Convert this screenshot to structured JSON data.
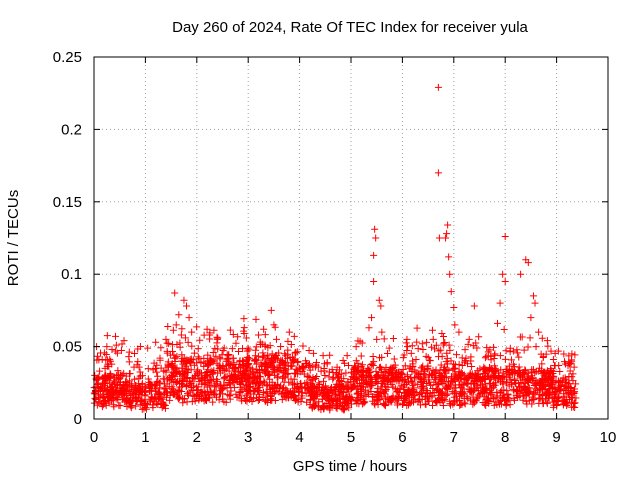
{
  "chart_data": {
    "type": "scatter",
    "title": "Day 260 of 2024, Rate Of TEC Index for receiver yula",
    "xlabel": "GPS time / hours",
    "ylabel": "ROTI / TECUs",
    "xlim": [
      0,
      10
    ],
    "ylim": [
      0,
      0.25
    ],
    "x_ticks": [
      0,
      1,
      2,
      3,
      4,
      5,
      6,
      7,
      8,
      9,
      10
    ],
    "x_tick_labels": [
      "0",
      "1",
      "2",
      "3",
      "4",
      "5",
      "6",
      "7",
      "8",
      "9",
      "10"
    ],
    "y_ticks": [
      0,
      0.05,
      0.1,
      0.15,
      0.2,
      0.25
    ],
    "y_tick_labels": [
      "0",
      "0.05",
      "0.1",
      "0.15",
      "0.2",
      "0.25"
    ],
    "grid": true,
    "marker": "+",
    "series": [
      {
        "name": "ROTI",
        "color": "#ff0000",
        "peaks": [
          {
            "x": 6.7,
            "y": 0.229
          },
          {
            "x": 6.7,
            "y": 0.17
          },
          {
            "x": 6.88,
            "y": 0.134
          },
          {
            "x": 6.86,
            "y": 0.128
          },
          {
            "x": 6.84,
            "y": 0.125
          },
          {
            "x": 6.72,
            "y": 0.125
          },
          {
            "x": 6.9,
            "y": 0.112
          },
          {
            "x": 6.92,
            "y": 0.1
          },
          {
            "x": 6.95,
            "y": 0.088
          },
          {
            "x": 7.0,
            "y": 0.077
          },
          {
            "x": 7.4,
            "y": 0.078
          },
          {
            "x": 7.02,
            "y": 0.065
          },
          {
            "x": 7.1,
            "y": 0.06
          },
          {
            "x": 7.3,
            "y": 0.055
          },
          {
            "x": 5.46,
            "y": 0.131
          },
          {
            "x": 5.48,
            "y": 0.125
          },
          {
            "x": 5.44,
            "y": 0.113
          },
          {
            "x": 5.44,
            "y": 0.095
          },
          {
            "x": 5.55,
            "y": 0.082
          },
          {
            "x": 5.58,
            "y": 0.078
          },
          {
            "x": 5.4,
            "y": 0.07
          },
          {
            "x": 5.35,
            "y": 0.063
          },
          {
            "x": 5.5,
            "y": 0.055
          },
          {
            "x": 5.6,
            "y": 0.06
          },
          {
            "x": 8.0,
            "y": 0.126
          },
          {
            "x": 8.4,
            "y": 0.11
          },
          {
            "x": 8.45,
            "y": 0.108
          },
          {
            "x": 8.3,
            "y": 0.1
          },
          {
            "x": 7.95,
            "y": 0.1
          },
          {
            "x": 8.0,
            "y": 0.095
          },
          {
            "x": 8.55,
            "y": 0.085
          },
          {
            "x": 8.58,
            "y": 0.08
          },
          {
            "x": 7.9,
            "y": 0.08
          },
          {
            "x": 8.5,
            "y": 0.07
          },
          {
            "x": 7.85,
            "y": 0.066
          },
          {
            "x": 8.65,
            "y": 0.06
          },
          {
            "x": 8.6,
            "y": 0.05
          },
          {
            "x": 7.8,
            "y": 0.045
          },
          {
            "x": 1.57,
            "y": 0.087
          },
          {
            "x": 1.75,
            "y": 0.082
          },
          {
            "x": 1.8,
            "y": 0.078
          },
          {
            "x": 1.85,
            "y": 0.07
          },
          {
            "x": 1.65,
            "y": 0.072
          },
          {
            "x": 1.6,
            "y": 0.065
          },
          {
            "x": 1.9,
            "y": 0.06
          },
          {
            "x": 1.7,
            "y": 0.058
          },
          {
            "x": 1.4,
            "y": 0.055
          },
          {
            "x": 1.2,
            "y": 0.053
          },
          {
            "x": 2.2,
            "y": 0.062
          },
          {
            "x": 2.25,
            "y": 0.058
          },
          {
            "x": 2.4,
            "y": 0.055
          },
          {
            "x": 3.45,
            "y": 0.075
          },
          {
            "x": 3.5,
            "y": 0.065
          },
          {
            "x": 3.3,
            "y": 0.062
          },
          {
            "x": 3.55,
            "y": 0.055
          },
          {
            "x": 3.8,
            "y": 0.06
          },
          {
            "x": 3.2,
            "y": 0.058
          },
          {
            "x": 0.05,
            "y": 0.05
          },
          {
            "x": 0.25,
            "y": 0.05
          },
          {
            "x": 0.35,
            "y": 0.048
          },
          {
            "x": 6.1,
            "y": 0.05
          },
          {
            "x": 6.6,
            "y": 0.055
          },
          {
            "x": 6.4,
            "y": 0.048
          },
          {
            "x": 5.1,
            "y": 0.05
          }
        ]
      }
    ]
  }
}
